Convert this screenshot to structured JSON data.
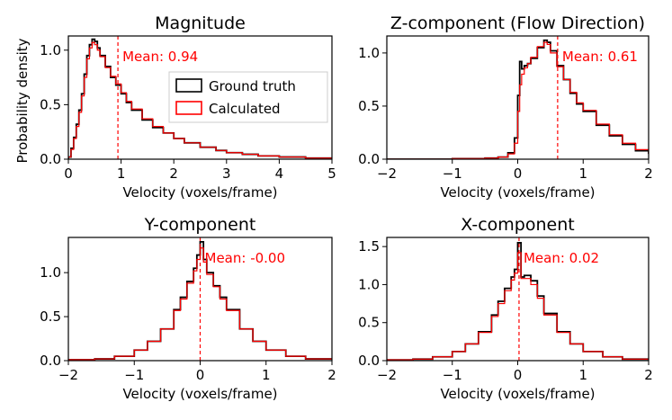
{
  "chart_data": [
    {
      "type": "histogram",
      "title": "Magnitude",
      "xlabel": "Velocity (voxels/frame)",
      "ylabel": "Probability density",
      "xlim": [
        0,
        5
      ],
      "ylim": [
        0,
        1.13
      ],
      "xticks": [
        0,
        1,
        2,
        3,
        4,
        5
      ],
      "yticks": [
        0.0,
        0.5,
        1.0
      ],
      "mean_value": 0.94,
      "mean_label": "Mean: 0.94",
      "series": [
        {
          "name": "Ground truth",
          "color": "#000000",
          "x": [
            0,
            0.05,
            0.1,
            0.15,
            0.2,
            0.25,
            0.3,
            0.35,
            0.4,
            0.45,
            0.5,
            0.55,
            0.6,
            0.7,
            0.8,
            0.9,
            1.0,
            1.1,
            1.2,
            1.4,
            1.6,
            1.8,
            2.0,
            2.2,
            2.5,
            2.8,
            3.0,
            3.3,
            3.6,
            4.0,
            4.5,
            5.0
          ],
          "y": [
            0.02,
            0.1,
            0.2,
            0.32,
            0.45,
            0.6,
            0.78,
            0.95,
            1.05,
            1.1,
            1.08,
            1.02,
            0.95,
            0.85,
            0.75,
            0.68,
            0.6,
            0.52,
            0.45,
            0.36,
            0.29,
            0.24,
            0.19,
            0.15,
            0.11,
            0.08,
            0.06,
            0.045,
            0.03,
            0.02,
            0.01,
            0.005
          ]
        },
        {
          "name": "Calculated",
          "color": "#ff0000",
          "x": [
            0,
            0.05,
            0.1,
            0.15,
            0.2,
            0.25,
            0.3,
            0.35,
            0.4,
            0.45,
            0.5,
            0.55,
            0.6,
            0.7,
            0.8,
            0.9,
            1.0,
            1.1,
            1.2,
            1.4,
            1.6,
            1.8,
            2.0,
            2.2,
            2.5,
            2.8,
            3.0,
            3.3,
            3.6,
            4.0,
            4.5,
            5.0
          ],
          "y": [
            0.02,
            0.09,
            0.19,
            0.3,
            0.43,
            0.58,
            0.75,
            0.92,
            1.02,
            1.07,
            1.05,
            1.0,
            0.94,
            0.84,
            0.76,
            0.69,
            0.61,
            0.53,
            0.46,
            0.37,
            0.3,
            0.24,
            0.19,
            0.15,
            0.11,
            0.08,
            0.06,
            0.045,
            0.03,
            0.02,
            0.01,
            0.005
          ]
        }
      ],
      "legend": {
        "position": "center-right",
        "entries": [
          "Ground truth",
          "Calculated"
        ]
      }
    },
    {
      "type": "histogram",
      "title": "Z-component (Flow Direction)",
      "xlabel": "Velocity (voxels/frame)",
      "ylabel": "",
      "xlim": [
        -2,
        2
      ],
      "ylim": [
        0,
        1.16
      ],
      "xticks": [
        -2,
        -1,
        0,
        1,
        2
      ],
      "yticks": [
        0.0,
        0.5,
        1.0
      ],
      "mean_value": 0.61,
      "mean_label": "Mean: 0.61",
      "series": [
        {
          "name": "Ground truth",
          "color": "#000000",
          "x": [
            -2,
            -1.5,
            -1,
            -0.5,
            -0.3,
            -0.15,
            -0.05,
            0,
            0.03,
            0.06,
            0.1,
            0.15,
            0.2,
            0.3,
            0.4,
            0.45,
            0.5,
            0.6,
            0.7,
            0.8,
            0.9,
            1.0,
            1.2,
            1.4,
            1.6,
            1.8,
            2.0
          ],
          "y": [
            0,
            0,
            0.005,
            0.01,
            0.02,
            0.06,
            0.2,
            0.6,
            0.92,
            0.85,
            0.88,
            0.9,
            0.95,
            1.05,
            1.12,
            1.1,
            1.02,
            0.88,
            0.75,
            0.62,
            0.52,
            0.45,
            0.32,
            0.22,
            0.14,
            0.08,
            0.05
          ]
        },
        {
          "name": "Calculated",
          "color": "#ff0000",
          "x": [
            -2,
            -1.5,
            -1,
            -0.5,
            -0.3,
            -0.15,
            -0.05,
            0,
            0.03,
            0.06,
            0.1,
            0.15,
            0.2,
            0.3,
            0.4,
            0.45,
            0.5,
            0.6,
            0.7,
            0.8,
            0.9,
            1.0,
            1.2,
            1.4,
            1.6,
            1.8,
            2.0
          ],
          "y": [
            0,
            0,
            0.005,
            0.01,
            0.02,
            0.05,
            0.15,
            0.45,
            0.7,
            0.8,
            0.86,
            0.9,
            0.96,
            1.06,
            1.1,
            1.08,
            1.0,
            0.87,
            0.75,
            0.63,
            0.53,
            0.46,
            0.33,
            0.23,
            0.15,
            0.09,
            0.05
          ]
        }
      ]
    },
    {
      "type": "histogram",
      "title": "Y-component",
      "xlabel": "Velocity (voxels/frame)",
      "ylabel": "",
      "xlim": [
        -2,
        2
      ],
      "ylim": [
        0,
        1.4
      ],
      "xticks": [
        -2,
        -1,
        0,
        1,
        2
      ],
      "yticks": [
        0.0,
        0.5,
        1.0
      ],
      "mean_value": -0.0,
      "mean_label": "Mean: -0.00",
      "series": [
        {
          "name": "Ground truth",
          "color": "#000000",
          "x": [
            -2,
            -1.6,
            -1.3,
            -1.0,
            -0.8,
            -0.6,
            -0.4,
            -0.3,
            -0.2,
            -0.1,
            -0.05,
            0,
            0.05,
            0.1,
            0.2,
            0.3,
            0.4,
            0.6,
            0.8,
            1.0,
            1.3,
            1.6,
            2.0
          ],
          "y": [
            0.01,
            0.02,
            0.05,
            0.12,
            0.22,
            0.36,
            0.58,
            0.72,
            0.9,
            1.05,
            1.2,
            1.35,
            1.15,
            1.0,
            0.85,
            0.72,
            0.58,
            0.36,
            0.22,
            0.12,
            0.05,
            0.02,
            0.01
          ]
        },
        {
          "name": "Calculated",
          "color": "#ff0000",
          "x": [
            -2,
            -1.6,
            -1.3,
            -1.0,
            -0.8,
            -0.6,
            -0.4,
            -0.3,
            -0.2,
            -0.1,
            -0.05,
            0,
            0.05,
            0.1,
            0.2,
            0.3,
            0.4,
            0.6,
            0.8,
            1.0,
            1.3,
            1.6,
            2.0
          ],
          "y": [
            0.01,
            0.02,
            0.05,
            0.12,
            0.22,
            0.36,
            0.57,
            0.7,
            0.88,
            1.02,
            1.15,
            1.28,
            1.12,
            0.98,
            0.84,
            0.7,
            0.57,
            0.36,
            0.22,
            0.12,
            0.05,
            0.02,
            0.01
          ]
        }
      ]
    },
    {
      "type": "histogram",
      "title": "X-component",
      "xlabel": "Velocity (voxels/frame)",
      "ylabel": "",
      "xlim": [
        -2,
        2
      ],
      "ylim": [
        0,
        1.62
      ],
      "xticks": [
        -2,
        -1,
        0,
        1,
        2
      ],
      "yticks": [
        0.0,
        0.5,
        1.0,
        1.5
      ],
      "mean_value": 0.02,
      "mean_label": "Mean: 0.02",
      "series": [
        {
          "name": "Ground truth",
          "color": "#000000",
          "x": [
            -2,
            -1.6,
            -1.3,
            -1.0,
            -0.8,
            -0.6,
            -0.4,
            -0.3,
            -0.2,
            -0.1,
            -0.05,
            0,
            0.05,
            0.1,
            0.2,
            0.3,
            0.4,
            0.6,
            0.8,
            1.0,
            1.3,
            1.6,
            2.0
          ],
          "y": [
            0.01,
            0.02,
            0.05,
            0.12,
            0.22,
            0.38,
            0.6,
            0.78,
            0.95,
            1.1,
            1.2,
            1.55,
            1.1,
            1.12,
            1.05,
            0.85,
            0.62,
            0.38,
            0.22,
            0.12,
            0.05,
            0.02,
            0.01
          ]
        },
        {
          "name": "Calculated",
          "color": "#ff0000",
          "x": [
            -2,
            -1.6,
            -1.3,
            -1.0,
            -0.8,
            -0.6,
            -0.4,
            -0.3,
            -0.2,
            -0.1,
            -0.05,
            0,
            0.05,
            0.1,
            0.2,
            0.3,
            0.4,
            0.6,
            0.8,
            1.0,
            1.3,
            1.6,
            2.0
          ],
          "y": [
            0.01,
            0.02,
            0.05,
            0.12,
            0.22,
            0.37,
            0.58,
            0.75,
            0.92,
            1.06,
            1.15,
            1.42,
            1.08,
            1.08,
            1.0,
            0.82,
            0.6,
            0.37,
            0.22,
            0.12,
            0.05,
            0.02,
            0.01
          ]
        }
      ]
    }
  ],
  "legend": {
    "ground_truth_label": "Ground truth",
    "calculated_label": "Calculated"
  }
}
